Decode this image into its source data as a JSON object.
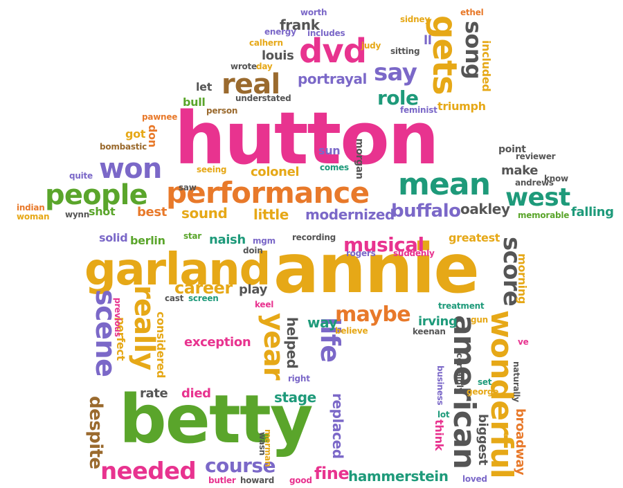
{
  "palette": {
    "pink": "#e8338f",
    "green": "#5aa52b",
    "orange": "#e8792a",
    "yellow": "#e6a817",
    "purple": "#7b68c8",
    "teal": "#1e9a7a",
    "brown": "#9a6a2e",
    "gray": "#555555",
    "lightpurple": "#8f7fd1"
  },
  "words": [
    {
      "id": "hutton",
      "text": "hutton",
      "color": "pink"
    },
    {
      "id": "annie",
      "text": "annie",
      "color": "yellow"
    },
    {
      "id": "betty",
      "text": "betty",
      "color": "green"
    },
    {
      "id": "garland",
      "text": "garland",
      "color": "yellow"
    },
    {
      "id": "performance",
      "text": "performance",
      "color": "orange"
    },
    {
      "id": "mean",
      "text": "mean",
      "color": "teal"
    },
    {
      "id": "people",
      "text": "people",
      "color": "green"
    },
    {
      "id": "won",
      "text": "won",
      "color": "purple"
    },
    {
      "id": "dvd",
      "text": "dvd",
      "color": "pink"
    },
    {
      "id": "real",
      "text": "real",
      "color": "brown"
    },
    {
      "id": "say",
      "text": "say",
      "color": "purple"
    },
    {
      "id": "gets",
      "text": "gets",
      "color": "yellow"
    },
    {
      "id": "song",
      "text": "song",
      "color": "gray"
    },
    {
      "id": "role",
      "text": "role",
      "color": "teal"
    },
    {
      "id": "west",
      "text": "west",
      "color": "teal"
    },
    {
      "id": "buffalo",
      "text": "buffalo",
      "color": "purple"
    },
    {
      "id": "oakley",
      "text": "oakley",
      "color": "gray"
    },
    {
      "id": "falling",
      "text": "falling",
      "color": "teal"
    },
    {
      "id": "musical",
      "text": "musical",
      "color": "pink"
    },
    {
      "id": "score",
      "text": "score",
      "color": "gray"
    },
    {
      "id": "career",
      "text": "career",
      "color": "yellow"
    },
    {
      "id": "really",
      "text": "really",
      "color": "yellow"
    },
    {
      "id": "scene",
      "text": "scene",
      "color": "purple"
    },
    {
      "id": "year",
      "text": "year",
      "color": "yellow"
    },
    {
      "id": "life",
      "text": "life",
      "color": "purple"
    },
    {
      "id": "maybe",
      "text": "maybe",
      "color": "orange"
    },
    {
      "id": "american",
      "text": "american",
      "color": "gray"
    },
    {
      "id": "wonderful",
      "text": "wonderful",
      "color": "yellow"
    },
    {
      "id": "course",
      "text": "course",
      "color": "purple"
    },
    {
      "id": "needed",
      "text": "needed",
      "color": "pink"
    },
    {
      "id": "hammerstein",
      "text": "hammerstein",
      "color": "teal"
    },
    {
      "id": "fine",
      "text": "fine",
      "color": "pink"
    },
    {
      "id": "despite",
      "text": "despite",
      "color": "brown"
    },
    {
      "id": "exception",
      "text": "exception",
      "color": "pink"
    },
    {
      "id": "stage",
      "text": "stage",
      "color": "teal"
    },
    {
      "id": "died",
      "text": "died",
      "color": "pink"
    },
    {
      "id": "rate",
      "text": "rate",
      "color": "gray"
    },
    {
      "id": "helped",
      "text": "helped",
      "color": "gray"
    },
    {
      "id": "replaced",
      "text": "replaced",
      "color": "purple"
    },
    {
      "id": "way",
      "text": "way",
      "color": "teal"
    },
    {
      "id": "irving",
      "text": "irving",
      "color": "teal"
    },
    {
      "id": "biggest",
      "text": "biggest",
      "color": "gray"
    },
    {
      "id": "broadway",
      "text": "broadway",
      "color": "orange"
    },
    {
      "id": "think",
      "text": "think",
      "color": "pink"
    },
    {
      "id": "considered",
      "text": "considered",
      "color": "yellow"
    },
    {
      "id": "perfect",
      "text": "perfect",
      "color": "yellow"
    },
    {
      "id": "berlin",
      "text": "berlin",
      "color": "green"
    },
    {
      "id": "naish",
      "text": "naish",
      "color": "teal"
    },
    {
      "id": "solid",
      "text": "solid",
      "color": "purple"
    },
    {
      "id": "play",
      "text": "play",
      "color": "gray"
    },
    {
      "id": "greatest",
      "text": "greatest",
      "color": "yellow"
    },
    {
      "id": "morning",
      "text": "morning",
      "color": "yellow"
    },
    {
      "id": "suddenly",
      "text": "suddenly",
      "color": "pink"
    },
    {
      "id": "rogers",
      "text": "rogers",
      "color": "purple"
    },
    {
      "id": "recording",
      "text": "recording",
      "color": "gray"
    },
    {
      "id": "sound",
      "text": "sound",
      "color": "yellow"
    },
    {
      "id": "little",
      "text": "little",
      "color": "yellow"
    },
    {
      "id": "modernized",
      "text": "modernized",
      "color": "purple"
    },
    {
      "id": "shot",
      "text": "shot",
      "color": "green"
    },
    {
      "id": "best",
      "text": "best",
      "color": "orange"
    },
    {
      "id": "colonel",
      "text": "colonel",
      "color": "yellow"
    },
    {
      "id": "make",
      "text": "make",
      "color": "gray"
    },
    {
      "id": "point",
      "text": "point",
      "color": "gray"
    },
    {
      "id": "don",
      "text": "don",
      "color": "orange"
    },
    {
      "id": "got",
      "text": "got",
      "color": "yellow"
    },
    {
      "id": "bombastic",
      "text": "bombastic",
      "color": "brown"
    },
    {
      "id": "portrayal",
      "text": "portrayal",
      "color": "purple"
    },
    {
      "id": "louis",
      "text": "louis",
      "color": "gray"
    },
    {
      "id": "frank",
      "text": "frank",
      "color": "gray"
    },
    {
      "id": "let",
      "text": "let",
      "color": "gray"
    },
    {
      "id": "bull",
      "text": "bull",
      "color": "green"
    },
    {
      "id": "triumph",
      "text": "triumph",
      "color": "yellow"
    },
    {
      "id": "included",
      "text": "included",
      "color": "yellow"
    },
    {
      "id": "morgan",
      "text": "morgan",
      "color": "gray"
    },
    {
      "id": "sun",
      "text": "sun",
      "color": "purple"
    },
    {
      "id": "understated",
      "text": "understated",
      "color": "gray"
    },
    {
      "id": "feminist",
      "text": "feminist",
      "color": "purple"
    },
    {
      "id": "ll",
      "text": "ll",
      "color": "purple"
    },
    {
      "id": "seeing",
      "text": "seeing",
      "color": "yellow"
    },
    {
      "id": "comes",
      "text": "comes",
      "color": "teal"
    },
    {
      "id": "saw",
      "text": "saw",
      "color": "gray"
    },
    {
      "id": "pawnee",
      "text": "pawnee",
      "color": "orange"
    },
    {
      "id": "person",
      "text": "person",
      "color": "brown"
    },
    {
      "id": "wrote",
      "text": "wrote",
      "color": "gray"
    },
    {
      "id": "day",
      "text": "day",
      "color": "yellow"
    },
    {
      "id": "calhern",
      "text": "calhern",
      "color": "yellow"
    },
    {
      "id": "energy",
      "text": "energy",
      "color": "purple"
    },
    {
      "id": "includes",
      "text": "includes",
      "color": "purple"
    },
    {
      "id": "worth",
      "text": "worth",
      "color": "purple"
    },
    {
      "id": "judy",
      "text": "judy",
      "color": "yellow"
    },
    {
      "id": "sidney",
      "text": "sidney",
      "color": "yellow"
    },
    {
      "id": "ethel",
      "text": "ethel",
      "color": "orange"
    },
    {
      "id": "sitting",
      "text": "sitting",
      "color": "gray"
    },
    {
      "id": "reviewer",
      "text": "reviewer",
      "color": "gray"
    },
    {
      "id": "know",
      "text": "know",
      "color": "gray"
    },
    {
      "id": "andrews",
      "text": "andrews",
      "color": "gray"
    },
    {
      "id": "memorable",
      "text": "memorable",
      "color": "green"
    },
    {
      "id": "quite",
      "text": "quite",
      "color": "purple"
    },
    {
      "id": "indian",
      "text": "indian",
      "color": "orange"
    },
    {
      "id": "woman",
      "text": "woman",
      "color": "yellow"
    },
    {
      "id": "wynn",
      "text": "wynn",
      "color": "gray"
    },
    {
      "id": "star",
      "text": "star",
      "color": "green"
    },
    {
      "id": "mgm",
      "text": "mgm",
      "color": "purple"
    },
    {
      "id": "doin",
      "text": "doin",
      "color": "gray"
    },
    {
      "id": "cast",
      "text": "cast",
      "color": "gray"
    },
    {
      "id": "screen",
      "text": "screen",
      "color": "teal"
    },
    {
      "id": "keel",
      "text": "keel",
      "color": "pink"
    },
    {
      "id": "treatment",
      "text": "treatment",
      "color": "teal"
    },
    {
      "id": "gun",
      "text": "gun",
      "color": "yellow"
    },
    {
      "id": "keenan",
      "text": "keenan",
      "color": "gray"
    },
    {
      "id": "believe",
      "text": "believe",
      "color": "yellow"
    },
    {
      "id": "ve",
      "text": "ve",
      "color": "pink"
    },
    {
      "id": "right",
      "text": "right",
      "color": "purple"
    },
    {
      "id": "business",
      "text": "business",
      "color": "purple"
    },
    {
      "id": "certainly",
      "text": "certainly",
      "color": "gray"
    },
    {
      "id": "set",
      "text": "set",
      "color": "teal"
    },
    {
      "id": "george",
      "text": "george",
      "color": "yellow"
    },
    {
      "id": "naturally",
      "text": "naturally",
      "color": "gray"
    },
    {
      "id": "lot",
      "text": "lot",
      "color": "teal"
    },
    {
      "id": "wasn",
      "text": "wasn",
      "color": "gray"
    },
    {
      "id": "merman",
      "text": "merman",
      "color": "yellow"
    },
    {
      "id": "butler",
      "text": "butler",
      "color": "pink"
    },
    {
      "id": "howard",
      "text": "howard",
      "color": "gray"
    },
    {
      "id": "good",
      "text": "good",
      "color": "pink"
    },
    {
      "id": "loved",
      "text": "loved",
      "color": "purple"
    },
    {
      "id": "previous",
      "text": "previous",
      "color": "pink"
    }
  ]
}
